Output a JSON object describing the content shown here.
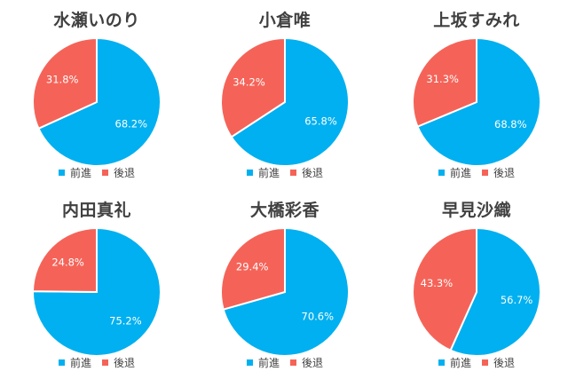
{
  "colors": {
    "前進": "#00b0f0",
    "後退": "#f56358"
  },
  "chart_data": [
    {
      "type": "pie",
      "title": "水瀬いのり",
      "categories": [
        "前進",
        "後退"
      ],
      "values": [
        68.2,
        31.8
      ],
      "labels": [
        "68.2%",
        "31.8%"
      ],
      "legend": [
        "前進",
        "後退"
      ]
    },
    {
      "type": "pie",
      "title": "小倉唯",
      "categories": [
        "前進",
        "後退"
      ],
      "values": [
        65.8,
        34.2
      ],
      "labels": [
        "65.8%",
        "34.2%"
      ],
      "legend": [
        "前進",
        "後退"
      ]
    },
    {
      "type": "pie",
      "title": "上坂すみれ",
      "categories": [
        "前進",
        "後退"
      ],
      "values": [
        68.8,
        31.3
      ],
      "labels": [
        "68.8%",
        "31.3%"
      ],
      "legend": [
        "前進",
        "後退"
      ]
    },
    {
      "type": "pie",
      "title": "内田真礼",
      "categories": [
        "前進",
        "後退"
      ],
      "values": [
        75.2,
        24.8
      ],
      "labels": [
        "75.2%",
        "24.8%"
      ],
      "legend": [
        "前進",
        "後退"
      ]
    },
    {
      "type": "pie",
      "title": "大橋彩香",
      "categories": [
        "前進",
        "後退"
      ],
      "values": [
        70.6,
        29.4
      ],
      "labels": [
        "70.6%",
        "29.4%"
      ],
      "legend": [
        "前進",
        "後退"
      ]
    },
    {
      "type": "pie",
      "title": "早見沙織",
      "categories": [
        "前進",
        "後退"
      ],
      "values": [
        56.7,
        43.3
      ],
      "labels": [
        "56.7%",
        "43.3%"
      ],
      "legend": [
        "前進",
        "後退"
      ]
    }
  ]
}
